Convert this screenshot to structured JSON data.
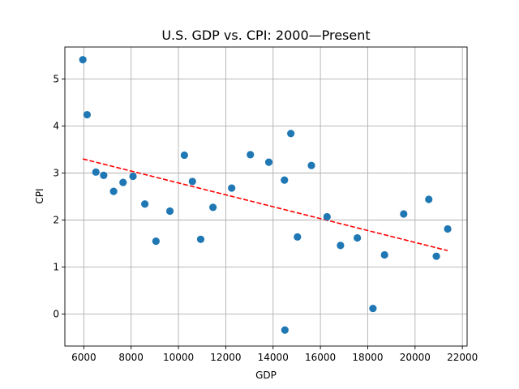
{
  "chart_data": {
    "type": "scatter",
    "title": "U.S. GDP vs. CPI: 2000—Present",
    "xlabel": "GDP",
    "ylabel": "CPI",
    "xlim": [
      5200,
      22200
    ],
    "ylim": [
      -0.68,
      5.68
    ],
    "xticks": [
      6000,
      8000,
      10000,
      12000,
      14000,
      16000,
      18000,
      20000,
      22000
    ],
    "yticks": [
      0,
      1,
      2,
      3,
      4,
      5
    ],
    "grid": true,
    "point_color": "#1f77b4",
    "trend_color": "#ff0000",
    "points": [
      {
        "x": 5960,
        "y": 5.41
      },
      {
        "x": 6140,
        "y": 4.24
      },
      {
        "x": 6510,
        "y": 3.02
      },
      {
        "x": 6840,
        "y": 2.95
      },
      {
        "x": 7260,
        "y": 2.61
      },
      {
        "x": 7660,
        "y": 2.8
      },
      {
        "x": 8080,
        "y": 2.93
      },
      {
        "x": 8580,
        "y": 2.34
      },
      {
        "x": 9050,
        "y": 1.55
      },
      {
        "x": 9640,
        "y": 2.19
      },
      {
        "x": 10250,
        "y": 3.38
      },
      {
        "x": 10590,
        "y": 2.82
      },
      {
        "x": 10940,
        "y": 1.59
      },
      {
        "x": 11460,
        "y": 2.27
      },
      {
        "x": 12250,
        "y": 2.68
      },
      {
        "x": 13040,
        "y": 3.39
      },
      {
        "x": 13820,
        "y": 3.23
      },
      {
        "x": 14480,
        "y": 2.85
      },
      {
        "x": 14500,
        "y": -0.34
      },
      {
        "x": 14750,
        "y": 3.84
      },
      {
        "x": 15030,
        "y": 1.64
      },
      {
        "x": 15620,
        "y": 3.16
      },
      {
        "x": 16280,
        "y": 2.07
      },
      {
        "x": 16850,
        "y": 1.46
      },
      {
        "x": 17560,
        "y": 1.62
      },
      {
        "x": 18220,
        "y": 0.12
      },
      {
        "x": 18710,
        "y": 1.26
      },
      {
        "x": 19520,
        "y": 2.13
      },
      {
        "x": 20580,
        "y": 2.44
      },
      {
        "x": 20900,
        "y": 1.23
      },
      {
        "x": 21380,
        "y": 1.81
      }
    ],
    "trendline": {
      "x": [
        5960,
        21380
      ],
      "y": [
        3.3,
        1.35
      ]
    }
  }
}
